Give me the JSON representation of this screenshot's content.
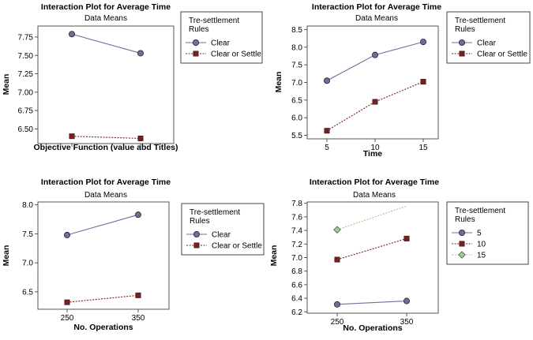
{
  "chart_data": [
    {
      "type": "line",
      "title": "Interaction Plot for Average Time",
      "subtitle": "Data Means",
      "xlabel": "Objective Function (value abd Titles)",
      "ylabel": "Mean",
      "categories": [
        "",
        ""
      ],
      "ylim": [
        6.3,
        7.9
      ],
      "yticks": [
        "6.50",
        "6.75",
        "7.00",
        "7.25",
        "7.50",
        "7.75"
      ],
      "legend_title": "Tre-settlement Rules",
      "series": [
        {
          "name": "Clear",
          "values": [
            7.79,
            7.53
          ],
          "color": "#6b6fa0",
          "marker": "circle",
          "dash": false
        },
        {
          "name": "Clear or Settle",
          "values": [
            6.4,
            6.37
          ],
          "color": "#7a1e1e",
          "marker": "square",
          "dash": true
        }
      ]
    },
    {
      "type": "line",
      "title": "Interaction Plot for Average Time",
      "subtitle": "Data Means",
      "xlabel": "Time",
      "ylabel": "Mean",
      "categories": [
        "5",
        "10",
        "15"
      ],
      "ylim": [
        5.4,
        8.6
      ],
      "yticks": [
        "5.5",
        "6.0",
        "6.5",
        "7.0",
        "7.5",
        "8.0",
        "8.5"
      ],
      "legend_title": "Tre-settlement Rules",
      "series": [
        {
          "name": "Clear",
          "values": [
            7.05,
            7.78,
            8.15
          ],
          "color": "#6b6fa0",
          "marker": "circle",
          "dash": false
        },
        {
          "name": "Clear or Settle",
          "values": [
            5.63,
            6.45,
            7.02
          ],
          "color": "#7a1e1e",
          "marker": "square",
          "dash": true
        }
      ]
    },
    {
      "type": "line",
      "title": "Interaction Plot for Average Time",
      "subtitle": "Data Means",
      "xlabel": "No. Operations",
      "ylabel": "Mean",
      "categories": [
        "250",
        "350"
      ],
      "ylim": [
        6.2,
        8.05
      ],
      "yticks": [
        "6.5",
        "7.0",
        "7.5",
        "8.0"
      ],
      "legend_title": "Tre-settlement Rules",
      "series": [
        {
          "name": "Clear",
          "values": [
            7.48,
            7.83
          ],
          "color": "#6b6fa0",
          "marker": "circle",
          "dash": false
        },
        {
          "name": "Clear or Settle",
          "values": [
            6.32,
            6.44
          ],
          "color": "#7a1e1e",
          "marker": "square",
          "dash": true
        }
      ]
    },
    {
      "type": "line",
      "title": "Interaction Plot for Average Time",
      "subtitle": "Data Means",
      "xlabel": "No. Operations",
      "ylabel": "Mean",
      "categories": [
        "250",
        "350"
      ],
      "ylim": [
        6.18,
        7.82
      ],
      "yticks": [
        "6.2",
        "6.4",
        "6.6",
        "6.8",
        "7.0",
        "7.2",
        "7.4",
        "7.6",
        "7.8"
      ],
      "legend_title": "Tre-settlement Rules",
      "series": [
        {
          "name": "5",
          "values": [
            6.31,
            6.36
          ],
          "color": "#6b6fa0",
          "marker": "circle",
          "dash": false
        },
        {
          "name": "10",
          "values": [
            6.97,
            7.28
          ],
          "color": "#7a1e1e",
          "marker": "square",
          "dash": true
        },
        {
          "name": "15",
          "values": [
            7.41,
            7.76
          ],
          "color": "#9ad08a",
          "marker": "diamond",
          "dash": true
        }
      ]
    }
  ]
}
